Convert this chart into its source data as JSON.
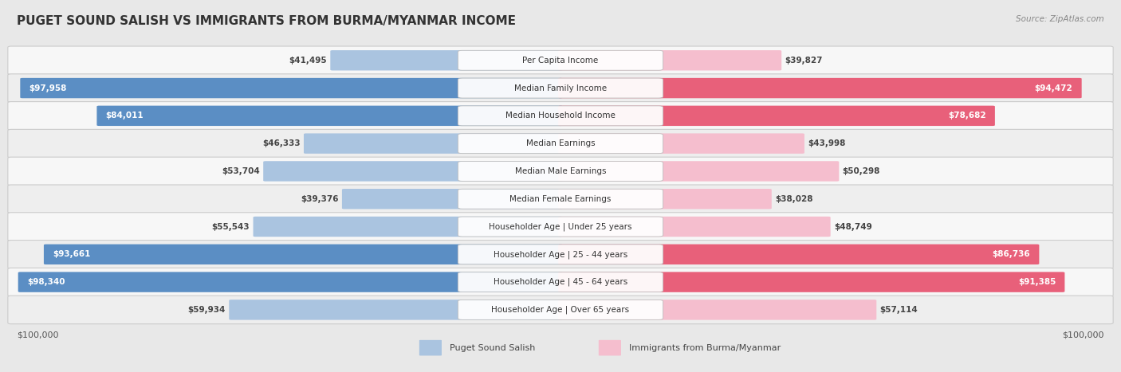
{
  "title": "PUGET SOUND SALISH VS IMMIGRANTS FROM BURMA/MYANMAR INCOME",
  "source": "Source: ZipAtlas.com",
  "categories": [
    "Per Capita Income",
    "Median Family Income",
    "Median Household Income",
    "Median Earnings",
    "Median Male Earnings",
    "Median Female Earnings",
    "Householder Age | Under 25 years",
    "Householder Age | 25 - 44 years",
    "Householder Age | 45 - 64 years",
    "Householder Age | Over 65 years"
  ],
  "left_values": [
    41495,
    97958,
    84011,
    46333,
    53704,
    39376,
    55543,
    93661,
    98340,
    59934
  ],
  "right_values": [
    39827,
    94472,
    78682,
    43998,
    50298,
    38028,
    48749,
    86736,
    91385,
    57114
  ],
  "left_color_light": "#aac4e0",
  "left_color_dark": "#5b8ec4",
  "right_color_light": "#f5bece",
  "right_color_dark": "#e8607a",
  "left_label": "Puget Sound Salish",
  "right_label": "Immigrants from Burma/Myanmar",
  "max_value": 100000,
  "background_color": "#e8e8e8",
  "row_bg_even": "#f7f7f7",
  "row_bg_odd": "#eeeeee",
  "label_fontsize": 7.5,
  "title_fontsize": 11,
  "value_fontsize": 7.5,
  "source_fontsize": 7.5,
  "legend_fontsize": 8,
  "axis_label_fontsize": 8,
  "inside_threshold": 60000
}
